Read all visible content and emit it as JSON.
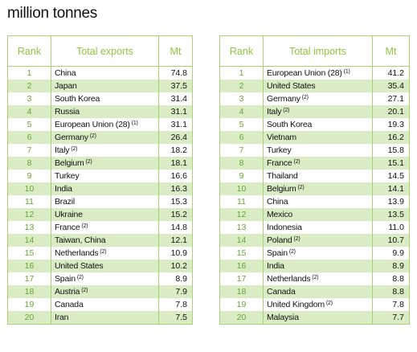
{
  "title": "million tonnes",
  "exports": {
    "headers": {
      "rank": "Rank",
      "name": "Total exports",
      "value": "Mt"
    },
    "rows": [
      {
        "rank": "1",
        "name": "China",
        "note": "",
        "value": "74.8"
      },
      {
        "rank": "2",
        "name": "Japan",
        "note": "",
        "value": "37.5"
      },
      {
        "rank": "3",
        "name": "South Korea",
        "note": "",
        "value": "31.4"
      },
      {
        "rank": "4",
        "name": "Russia",
        "note": "",
        "value": "31.1"
      },
      {
        "rank": "5",
        "name": "European Union (28)",
        "note": "(1)",
        "value": "31.1"
      },
      {
        "rank": "6",
        "name": "Germany",
        "note": "(2)",
        "value": "26.4"
      },
      {
        "rank": "7",
        "name": "Italy",
        "note": "(2)",
        "value": "18.2"
      },
      {
        "rank": "8",
        "name": "Belgium",
        "note": "(2)",
        "value": "18.1"
      },
      {
        "rank": "9",
        "name": "Turkey",
        "note": "",
        "value": "16.6"
      },
      {
        "rank": "10",
        "name": "India",
        "note": "",
        "value": "16.3"
      },
      {
        "rank": "11",
        "name": "Brazil",
        "note": "",
        "value": "15.3"
      },
      {
        "rank": "12",
        "name": "Ukraine",
        "note": "",
        "value": "15.2"
      },
      {
        "rank": "13",
        "name": "France",
        "note": "(2)",
        "value": "14.8"
      },
      {
        "rank": "14",
        "name": "Taiwan, China",
        "note": "",
        "value": "12.1"
      },
      {
        "rank": "15",
        "name": "Netherlands",
        "note": "(2)",
        "value": "10.9"
      },
      {
        "rank": "16",
        "name": "United States",
        "note": "",
        "value": "10.2"
      },
      {
        "rank": "17",
        "name": "Spain",
        "note": "(2)",
        "value": "8.9"
      },
      {
        "rank": "18",
        "name": "Austria",
        "note": "(2)",
        "value": "7.9"
      },
      {
        "rank": "19",
        "name": "Canada",
        "note": "",
        "value": "7.8"
      },
      {
        "rank": "20",
        "name": "Iran",
        "note": "",
        "value": "7.5"
      }
    ]
  },
  "imports": {
    "headers": {
      "rank": "Rank",
      "name": "Total imports",
      "value": "Mt"
    },
    "rows": [
      {
        "rank": "1",
        "name": "European Union (28)",
        "note": "(1)",
        "value": "41.2"
      },
      {
        "rank": "2",
        "name": "United States",
        "note": "",
        "value": "35.4"
      },
      {
        "rank": "3",
        "name": "Germany",
        "note": "(2)",
        "value": "27.1"
      },
      {
        "rank": "4",
        "name": "Italy",
        "note": "(2)",
        "value": "20.1"
      },
      {
        "rank": "5",
        "name": "South Korea",
        "note": "",
        "value": "19.3"
      },
      {
        "rank": "6",
        "name": "Vietnam",
        "note": "",
        "value": "16.2"
      },
      {
        "rank": "7",
        "name": "Turkey",
        "note": "",
        "value": "15.8"
      },
      {
        "rank": "8",
        "name": "France",
        "note": "(2)",
        "value": "15.1"
      },
      {
        "rank": "9",
        "name": "Thailand",
        "note": "",
        "value": "14.5"
      },
      {
        "rank": "10",
        "name": "Belgium",
        "note": "(2)",
        "value": "14.1"
      },
      {
        "rank": "11",
        "name": "China",
        "note": "",
        "value": "13.9"
      },
      {
        "rank": "12",
        "name": "Mexico",
        "note": "",
        "value": "13.5"
      },
      {
        "rank": "13",
        "name": "Indonesia",
        "note": "",
        "value": "11.0"
      },
      {
        "rank": "14",
        "name": "Poland",
        "note": "(2)",
        "value": "10.7"
      },
      {
        "rank": "15",
        "name": "Spain",
        "note": "(2)",
        "value": "9.9"
      },
      {
        "rank": "16",
        "name": "India",
        "note": "",
        "value": "8.9"
      },
      {
        "rank": "17",
        "name": "Netherlands",
        "note": "(2)",
        "value": "8.8"
      },
      {
        "rank": "18",
        "name": "Canada",
        "note": "",
        "value": "8.8"
      },
      {
        "rank": "19",
        "name": "United Kingdom",
        "note": "(2)",
        "value": "7.8"
      },
      {
        "rank": "20",
        "name": "Malaysia",
        "note": "",
        "value": "7.7"
      }
    ]
  }
}
